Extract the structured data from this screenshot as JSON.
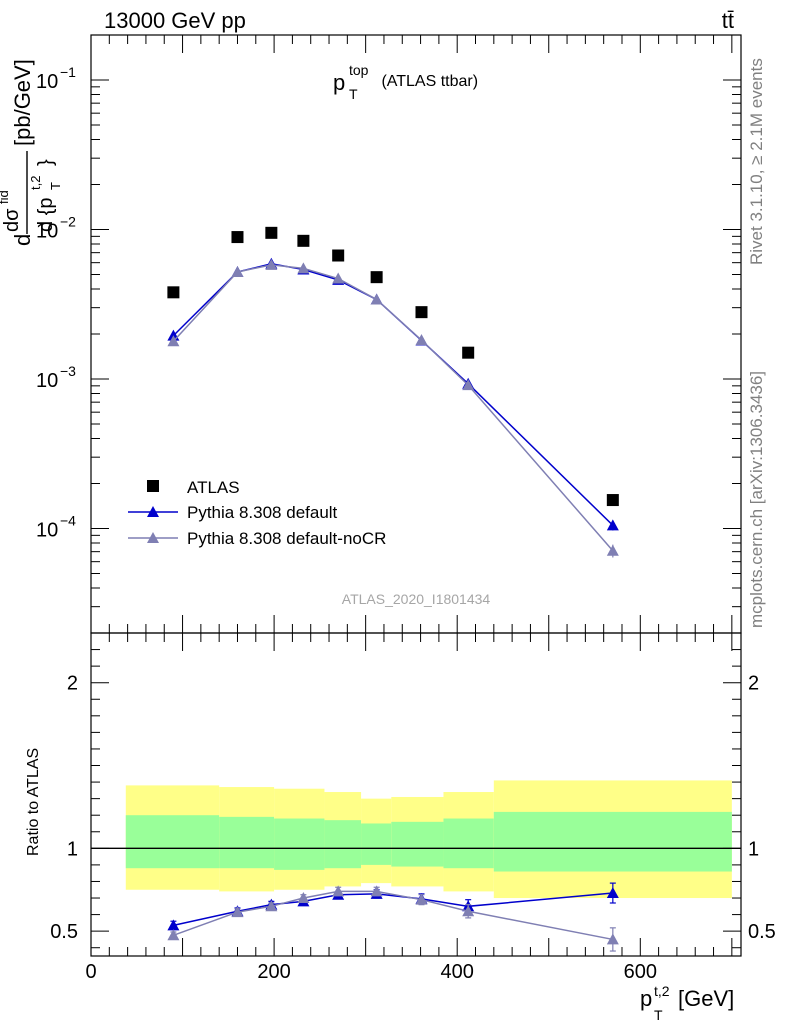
{
  "header": {
    "collision": "13000 GeV pp",
    "process": "tt̄"
  },
  "side_labels": {
    "rivet": "Rivet 3.1.10, ≥ 2.1M events",
    "mcplots": "mcplots.cern.ch [arXiv:1306.3436]"
  },
  "plot_title": {
    "main": "p",
    "sup": "top",
    "sub": "T",
    "rest": " (ATLAS ttbar)"
  },
  "watermark": "ATLAS_2020_I1801434",
  "colors": {
    "atlas": "#000000",
    "default": "#0000cc",
    "nocr": "#7f7fb3",
    "band_outer": "#ffff88",
    "band_inner": "#99ff99"
  },
  "chart_data": [
    {
      "type": "scatter",
      "panel": "main",
      "ylabel": "d dσ^{fid} / d {p_T^{t,2}} [pb/GeV]",
      "yscale": "log",
      "ylim": [
        2e-05,
        0.2
      ],
      "xlim": [
        0,
        710
      ],
      "y_ticks": [
        {
          "value": 0.1,
          "label": "10^-1"
        },
        {
          "value": 0.01,
          "label": "10^-2"
        },
        {
          "value": 0.001,
          "label": "10^-3"
        },
        {
          "value": 0.0001,
          "label": "10^-4"
        }
      ],
      "legend_position": "bottom-left",
      "series": [
        {
          "name": "ATLAS",
          "marker": "square",
          "x": [
            90,
            160,
            197,
            232,
            270,
            312,
            361,
            412,
            570
          ],
          "y": [
            0.0038,
            0.0089,
            0.0095,
            0.0084,
            0.0067,
            0.0048,
            0.0028,
            0.0015,
            0.000155
          ]
        },
        {
          "name": "Pythia 8.308 default",
          "marker": "triangle",
          "x": [
            90,
            160,
            197,
            232,
            270,
            312,
            361,
            412,
            570
          ],
          "y": [
            0.00195,
            0.0052,
            0.0059,
            0.0054,
            0.0046,
            0.0034,
            0.00181,
            0.00093,
            0.000105
          ],
          "err": [
            6e-05,
            9e-05,
            0.0001,
            9e-05,
            8e-05,
            7e-05,
            4e-05,
            3e-05,
            8e-06
          ]
        },
        {
          "name": "Pythia 8.308 default-noCR",
          "marker": "triangle",
          "x": [
            90,
            160,
            197,
            232,
            270,
            312,
            361,
            412,
            570
          ],
          "y": [
            0.00179,
            0.0052,
            0.0058,
            0.0055,
            0.0047,
            0.0034,
            0.00182,
            0.00091,
            7.1e-05
          ],
          "err": [
            6e-05,
            9e-05,
            0.0001,
            9e-05,
            8e-05,
            7e-05,
            4e-05,
            3e-05,
            7e-06
          ]
        }
      ]
    },
    {
      "type": "line",
      "panel": "ratio",
      "ylabel": "Ratio to ATLAS",
      "xlabel": "p_T^{t,2} [GeV]",
      "ylim": [
        0.35,
        2.3
      ],
      "xlim": [
        0,
        710
      ],
      "y_ticks": [
        0.5,
        1,
        2
      ],
      "x_ticks": [
        0,
        200,
        400,
        600
      ],
      "bands": {
        "edges": [
          38,
          140,
          200,
          255,
          295,
          328,
          385,
          440,
          700
        ],
        "outer_low": [
          0.75,
          0.74,
          0.75,
          0.77,
          0.79,
          0.77,
          0.74,
          0.7,
          0.6
        ],
        "outer_high": [
          1.38,
          1.37,
          1.36,
          1.34,
          1.3,
          1.31,
          1.34,
          1.41,
          1.5
        ],
        "inner_low": [
          0.88,
          0.88,
          0.87,
          0.88,
          0.9,
          0.89,
          0.88,
          0.86,
          0.83
        ],
        "inner_high": [
          1.2,
          1.19,
          1.18,
          1.17,
          1.15,
          1.16,
          1.18,
          1.22,
          1.28
        ]
      },
      "series": [
        {
          "name": "Pythia 8.308 default",
          "x": [
            90,
            160,
            197,
            232,
            270,
            312,
            361,
            412,
            570
          ],
          "y": [
            0.535,
            0.62,
            0.66,
            0.68,
            0.72,
            0.725,
            0.695,
            0.65,
            0.73
          ],
          "err": [
            0.025,
            0.02,
            0.02,
            0.02,
            0.02,
            0.025,
            0.03,
            0.04,
            0.06
          ]
        },
        {
          "name": "Pythia 8.308 default-noCR",
          "x": [
            90,
            160,
            197,
            232,
            270,
            312,
            361,
            412,
            570
          ],
          "y": [
            0.475,
            0.615,
            0.65,
            0.7,
            0.74,
            0.74,
            0.69,
            0.62,
            0.45
          ],
          "err": [
            0.02,
            0.02,
            0.02,
            0.02,
            0.025,
            0.025,
            0.03,
            0.04,
            0.07
          ]
        }
      ]
    }
  ]
}
